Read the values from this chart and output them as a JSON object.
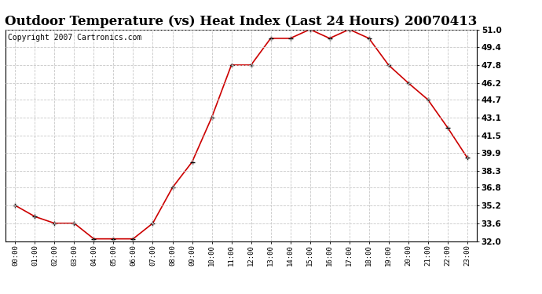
{
  "title": "Outdoor Temperature (vs) Heat Index (Last 24 Hours) 20070413",
  "copyright_text": "Copyright 2007 Cartronics.com",
  "x_labels": [
    "00:00",
    "01:00",
    "02:00",
    "03:00",
    "04:00",
    "05:00",
    "06:00",
    "07:00",
    "08:00",
    "09:00",
    "10:00",
    "11:00",
    "12:00",
    "13:00",
    "14:00",
    "15:00",
    "16:00",
    "17:00",
    "18:00",
    "19:00",
    "20:00",
    "21:00",
    "22:00",
    "23:00"
  ],
  "y_values": [
    35.2,
    34.2,
    33.6,
    33.6,
    32.2,
    32.2,
    32.2,
    33.6,
    36.8,
    39.1,
    43.1,
    47.8,
    47.8,
    50.2,
    50.2,
    51.0,
    50.2,
    51.0,
    50.2,
    47.8,
    46.2,
    44.7,
    42.2,
    39.5
  ],
  "ylim_min": 32.0,
  "ylim_max": 51.0,
  "yticks": [
    32.0,
    33.6,
    35.2,
    36.8,
    38.3,
    39.9,
    41.5,
    43.1,
    44.7,
    46.2,
    47.8,
    49.4,
    51.0
  ],
  "ytick_labels": [
    "32.0",
    "33.6",
    "35.2",
    "36.8",
    "38.3",
    "39.9",
    "41.5",
    "43.1",
    "44.7",
    "46.2",
    "47.8",
    "49.4",
    "51.0"
  ],
  "line_color": "#cc0000",
  "marker": "+",
  "marker_color": "#000000",
  "background_color": "#ffffff",
  "grid_color": "#c8c8c8",
  "title_fontsize": 12,
  "copyright_fontsize": 7
}
